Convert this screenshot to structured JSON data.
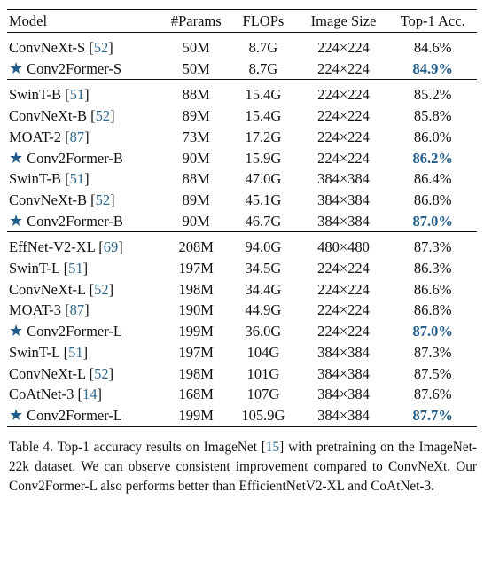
{
  "table": {
    "headers": [
      "Model",
      "#Params",
      "FLOPs",
      "Image Size",
      "Top-1 Acc."
    ],
    "groups": [
      [
        {
          "model": "ConvNeXt-S",
          "ref": "52",
          "star": false,
          "params": "50M",
          "flops": "8.7G",
          "size": "224×224",
          "acc": "84.6%",
          "best": false
        },
        {
          "model": "Conv2Former-S",
          "ref": "",
          "star": true,
          "params": "50M",
          "flops": "8.7G",
          "size": "224×224",
          "acc": "84.9%",
          "best": true
        }
      ],
      [
        {
          "model": "SwinT-B",
          "ref": "51",
          "star": false,
          "params": "88M",
          "flops": "15.4G",
          "size": "224×224",
          "acc": "85.2%",
          "best": false
        },
        {
          "model": "ConvNeXt-B",
          "ref": "52",
          "star": false,
          "params": "89M",
          "flops": "15.4G",
          "size": "224×224",
          "acc": "85.8%",
          "best": false
        },
        {
          "model": "MOAT-2",
          "ref": "87",
          "star": false,
          "params": "73M",
          "flops": "17.2G",
          "size": "224×224",
          "acc": "86.0%",
          "best": false
        },
        {
          "model": "Conv2Former-B",
          "ref": "",
          "star": true,
          "params": "90M",
          "flops": "15.9G",
          "size": "224×224",
          "acc": "86.2%",
          "best": true
        },
        {
          "model": "SwinT-B",
          "ref": "51",
          "star": false,
          "params": "88M",
          "flops": "47.0G",
          "size": "384×384",
          "acc": "86.4%",
          "best": false
        },
        {
          "model": "ConvNeXt-B",
          "ref": "52",
          "star": false,
          "params": "89M",
          "flops": "45.1G",
          "size": "384×384",
          "acc": "86.8%",
          "best": false
        },
        {
          "model": "Conv2Former-B",
          "ref": "",
          "star": true,
          "params": "90M",
          "flops": "46.7G",
          "size": "384×384",
          "acc": "87.0%",
          "best": true
        }
      ],
      [
        {
          "model": "EffNet-V2-XL",
          "ref": "69",
          "star": false,
          "params": "208M",
          "flops": "94.0G",
          "size": "480×480",
          "acc": "87.3%",
          "best": false
        },
        {
          "model": "SwinT-L",
          "ref": "51",
          "star": false,
          "params": "197M",
          "flops": "34.5G",
          "size": "224×224",
          "acc": "86.3%",
          "best": false
        },
        {
          "model": "ConvNeXt-L",
          "ref": "52",
          "star": false,
          "params": "198M",
          "flops": "34.4G",
          "size": "224×224",
          "acc": "86.6%",
          "best": false
        },
        {
          "model": "MOAT-3",
          "ref": "87",
          "star": false,
          "params": "190M",
          "flops": "44.9G",
          "size": "224×224",
          "acc": "86.8%",
          "best": false
        },
        {
          "model": "Conv2Former-L",
          "ref": "",
          "star": true,
          "params": "199M",
          "flops": "36.0G",
          "size": "224×224",
          "acc": "87.0%",
          "best": true
        },
        {
          "model": "SwinT-L",
          "ref": "51",
          "star": false,
          "params": "197M",
          "flops": "104G",
          "size": "384×384",
          "acc": "87.3%",
          "best": false
        },
        {
          "model": "ConvNeXt-L",
          "ref": "52",
          "star": false,
          "params": "198M",
          "flops": "101G",
          "size": "384×384",
          "acc": "87.5%",
          "best": false
        },
        {
          "model": "CoAtNet-3",
          "ref": "14",
          "star": false,
          "params": "168M",
          "flops": "107G",
          "size": "384×384",
          "acc": "87.6%",
          "best": false
        },
        {
          "model": "Conv2Former-L",
          "ref": "",
          "star": true,
          "params": "199M",
          "flops": "105.9G",
          "size": "384×384",
          "acc": "87.7%",
          "best": true
        }
      ]
    ]
  },
  "caption": {
    "label": "Table 4.",
    "before_ref": "Top-1 accuracy results on ImageNet",
    "ref": "15",
    "after_ref": "with pretraining on the ImageNet-22k dataset. We can observe consistent improvement compared to ConvNeXt. Our Conv2Former-L also performs better than EfficientNetV2-XL and CoAtNet-3."
  },
  "colors": {
    "highlight": "#1f5c87",
    "citation": "#2e6a8a"
  },
  "icons": {
    "star": "star-icon"
  }
}
